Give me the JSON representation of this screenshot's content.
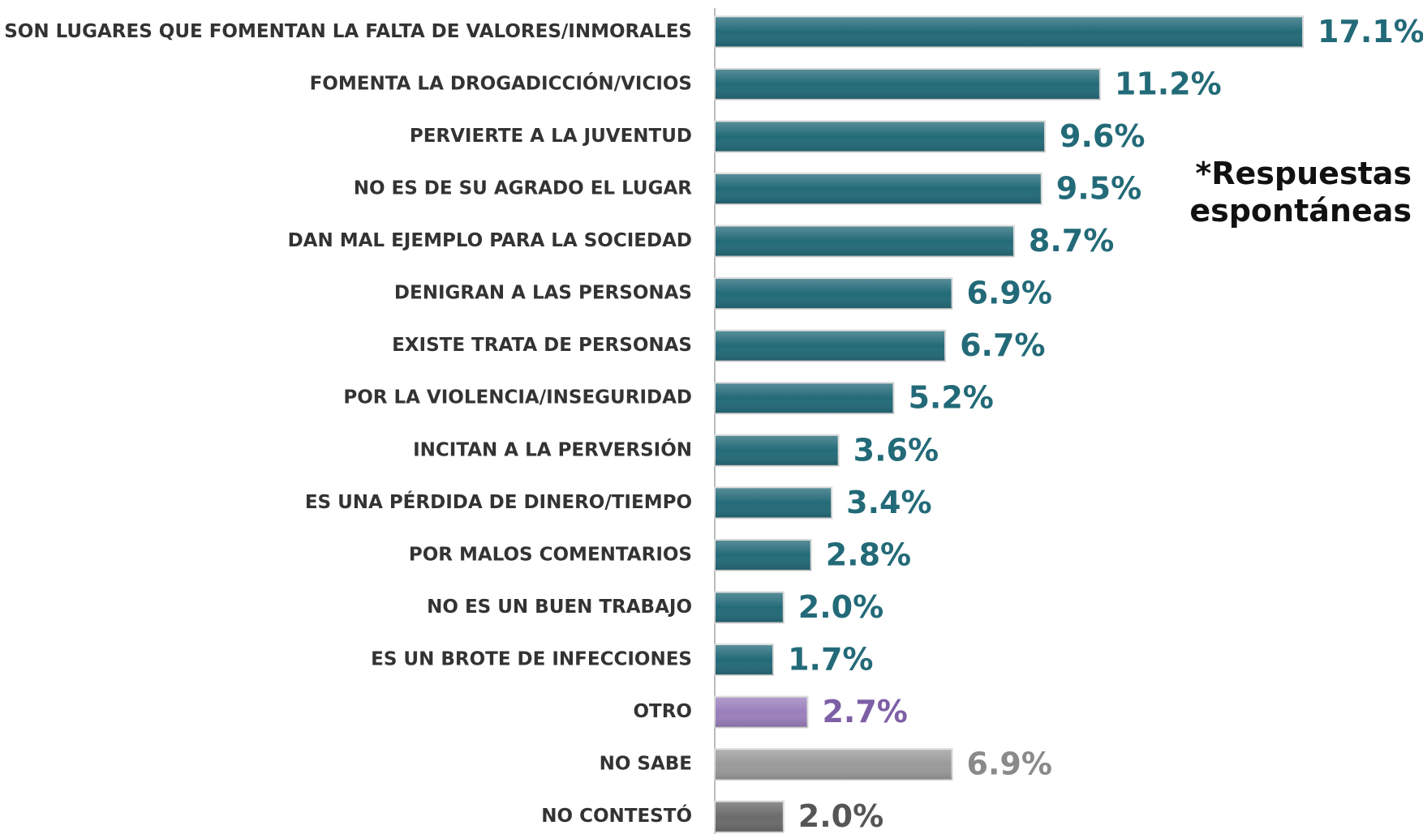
{
  "chart_data": {
    "type": "hbar",
    "categories": [
      "SON LUGARES QUE FOMENTAN LA FALTA DE VALORES/INMORALES",
      "FOMENTA LA DROGADICCIÓN/VICIOS",
      "PERVIERTE A LA JUVENTUD",
      "NO ES DE SU AGRADO EL LUGAR",
      "DAN MAL EJEMPLO PARA LA SOCIEDAD",
      "DENIGRAN A LAS PERSONAS",
      "EXISTE TRATA DE PERSONAS",
      "POR LA VIOLENCIA/INSEGURIDAD",
      "INCITAN A LA PERVERSIÓN",
      "ES UNA PÉRDIDA DE DINERO/TIEMPO",
      "POR MALOS COMENTARIOS",
      "NO ES UN BUEN TRABAJO",
      "ES UN BROTE DE INFECCIONES",
      "OTRO",
      "NO SABE",
      "NO CONTESTÓ"
    ],
    "values": [
      17.1,
      11.2,
      9.6,
      9.5,
      8.7,
      6.9,
      6.7,
      5.2,
      3.6,
      3.4,
      2.8,
      2.0,
      1.7,
      2.7,
      6.9,
      2.0
    ],
    "value_labels": [
      "17.1%",
      "11.2%",
      "9.6%",
      "9.5%",
      "8.7%",
      "6.9%",
      "6.7%",
      "5.2%",
      "3.6%",
      "3.4%",
      "2.8%",
      "2.0%",
      "1.7%",
      "2.7%",
      "6.9%",
      "2.0%"
    ],
    "colors": [
      "#236a78",
      "#236a78",
      "#236a78",
      "#236a78",
      "#236a78",
      "#236a78",
      "#236a78",
      "#236a78",
      "#236a78",
      "#236a78",
      "#236a78",
      "#236a78",
      "#236a78",
      "#9a7fbb",
      "#9a9a9a",
      "#6b6b6b"
    ],
    "label_colors": [
      "#236a78",
      "#236a78",
      "#236a78",
      "#236a78",
      "#236a78",
      "#236a78",
      "#236a78",
      "#236a78",
      "#236a78",
      "#236a78",
      "#236a78",
      "#236a78",
      "#236a78",
      "#7d5fa6",
      "#8a8a8a",
      "#555555"
    ],
    "xlim": [
      0,
      20
    ],
    "annotation": "*Respuestas espontáneas"
  }
}
